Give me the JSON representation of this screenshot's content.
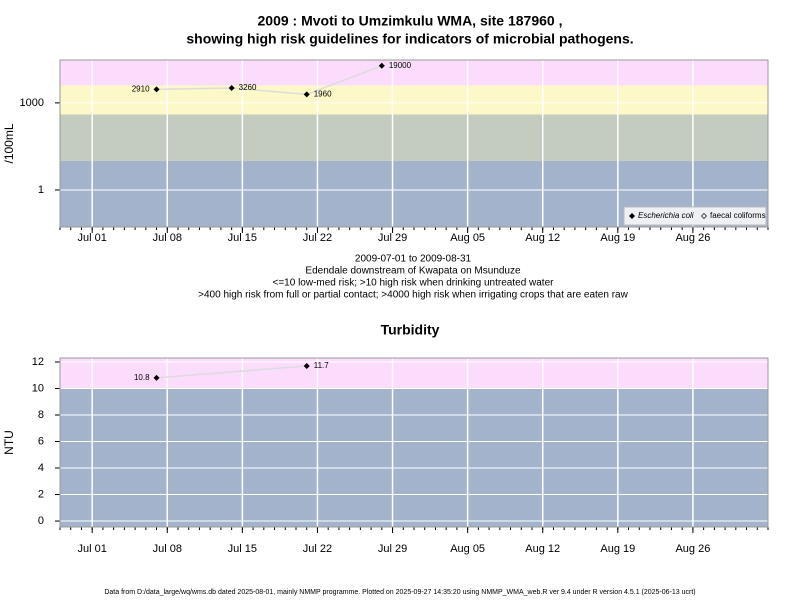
{
  "chart_data": [
    {
      "type": "line",
      "title": [
        "2009 : Mvoti to Umzimkulu WMA, site 187960 ,",
        "showing high risk guidelines for indicators of microbial pathogens."
      ],
      "notes": [
        "2009-07-01 to 2009-08-31",
        "Edendale downstream of Kwapata on Msunduze",
        "<=10 low-med risk; >10 high risk when drinking untreated water",
        ">400 high risk from full or partial contact; >4000 high risk when irrigating crops that are eaten raw"
      ],
      "y_label": "/100mL",
      "log_y": true,
      "x": [
        "2009-07-07",
        "2009-07-14",
        "2009-07-21",
        "2009-07-28"
      ],
      "series": [
        {
          "name": "Escherichia coli",
          "color": "#000000",
          "values": [
            2910,
            3260,
            1960,
            19000
          ]
        },
        {
          "name": "faecal coliforms",
          "color": "#000000",
          "values": [
            null,
            null,
            null,
            null
          ]
        }
      ],
      "xlim": [
        "2009-06-28",
        "2009-09-02"
      ],
      "xticks": [
        {
          "value": "2009-07-01",
          "label": "Jul 01"
        },
        {
          "value": "2009-07-08",
          "label": "Jul 08"
        },
        {
          "value": "2009-07-15",
          "label": "Jul 15"
        },
        {
          "value": "2009-07-22",
          "label": "Jul 22"
        },
        {
          "value": "2009-07-29",
          "label": "Jul 29"
        },
        {
          "value": "2009-08-05",
          "label": "Aug 05"
        },
        {
          "value": "2009-08-12",
          "label": "Aug 12"
        },
        {
          "value": "2009-08-19",
          "label": "Aug 19"
        },
        {
          "value": "2009-08-26",
          "label": "Aug 26"
        }
      ],
      "ylim": [
        0.053,
        30000
      ],
      "yticks": [
        1,
        1000
      ],
      "bands": {
        "thresholds": [
          10,
          400,
          4000
        ],
        "colors": [
          "#a3b3cc",
          "#c3ccbf",
          "#fdf8c8",
          "#fcdcfc"
        ]
      },
      "grid": true,
      "legend": "bottom-right"
    },
    {
      "type": "line",
      "title": [
        "Turbidity"
      ],
      "y_label": "NTU",
      "log_y": false,
      "x": [
        "2009-07-07",
        "2009-07-21"
      ],
      "series": [
        {
          "name": null,
          "color": "#000000",
          "values": [
            10.8,
            11.7
          ]
        }
      ],
      "xlim": [
        "2009-06-28",
        "2009-09-02"
      ],
      "xticks": [
        {
          "value": "2009-07-01",
          "label": "Jul 01"
        },
        {
          "value": "2009-07-08",
          "label": "Jul 08"
        },
        {
          "value": "2009-07-15",
          "label": "Jul 15"
        },
        {
          "value": "2009-07-22",
          "label": "Jul 22"
        },
        {
          "value": "2009-07-29",
          "label": "Jul 29"
        },
        {
          "value": "2009-08-05",
          "label": "Aug 05"
        },
        {
          "value": "2009-08-12",
          "label": "Aug 12"
        },
        {
          "value": "2009-08-19",
          "label": "Aug 19"
        },
        {
          "value": "2009-08-26",
          "label": "Aug 26"
        }
      ],
      "ylim": [
        -0.45,
        12.3
      ],
      "yticks": [
        0,
        2,
        4,
        6,
        8,
        10,
        12
      ],
      "bands": {
        "thresholds": [
          10
        ],
        "colors": [
          "#a3b3cc",
          "#fcdcfc"
        ]
      },
      "grid": true
    }
  ],
  "footer": "Data from D:/data_large/wq/wms.db dated 2025-08-01, mainly NMMP programme. Plotted on 2025-09-27 14:35:20 using NMMP_WMA_web.R ver 9.4 under R version 4.5.1 (2025-06-13 ucrt)"
}
